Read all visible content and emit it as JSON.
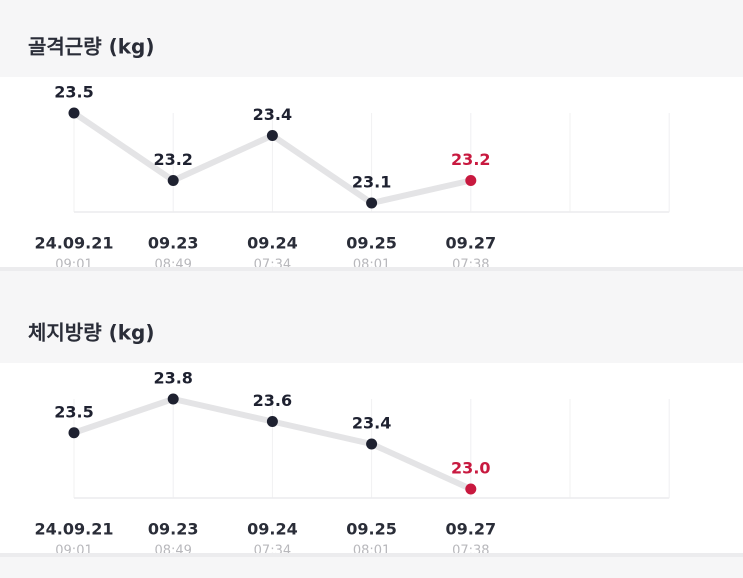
{
  "chart_data": [
    {
      "type": "line",
      "title": "골격근량 (kg)",
      "categories": [
        "24.09.21",
        "09.23",
        "09.24",
        "09.25",
        "09.27"
      ],
      "times": [
        "09:01",
        "08:49",
        "07:34",
        "08:01",
        "07:38"
      ],
      "values": [
        23.5,
        23.2,
        23.4,
        23.1,
        23.2
      ],
      "color": "#1e2130",
      "line_color": "#e4e4e6",
      "highlight_color": "#c8193f"
    },
    {
      "type": "line",
      "title": "체지방량 (kg)",
      "categories": [
        "24.09.21",
        "09.23",
        "09.24",
        "09.25",
        "09.27"
      ],
      "times": [
        "09:01",
        "08:49",
        "07:34",
        "08:01",
        "07:38"
      ],
      "values": [
        23.5,
        23.8,
        23.6,
        23.4,
        23.0
      ],
      "value_labels": [
        "23.5",
        "23.8",
        "23.6",
        "23.4",
        "23.0"
      ],
      "color": "#1e2130",
      "line_color": "#e4e4e6",
      "highlight_color": "#c8193f"
    }
  ]
}
